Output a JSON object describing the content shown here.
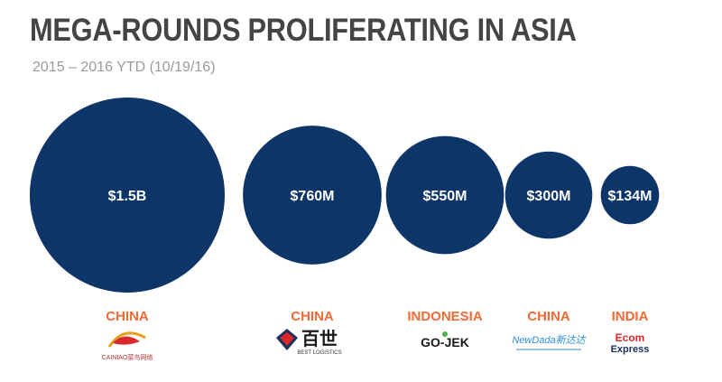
{
  "title": "MEGA-ROUNDS PROLIFERATING IN ASIA",
  "subtitle": "2015 – 2016 YTD (10/19/16)",
  "colors": {
    "bubble": "#0d3568",
    "country": "#f26a34",
    "title": "#444444",
    "subtitle": "#9a9a9a",
    "label_inside": "#ffffff"
  },
  "chart_data": {
    "type": "bubble",
    "title": "MEGA-ROUNDS PROLIFERATING IN ASIA",
    "subtitle": "2015 – 2016 YTD (10/19/16)",
    "values_musd": [
      1500,
      760,
      550,
      300,
      134
    ],
    "value_labels": [
      "$1.5B",
      "$760M",
      "$550M",
      "$300M",
      "$134M"
    ],
    "countries": [
      "CHINA",
      "CHINA",
      "INDONESIA",
      "CHINA",
      "INDIA"
    ],
    "logos": [
      {
        "text": "CAINIAO菜鸟网络",
        "icon": "cainiao-logo"
      },
      {
        "text": "百世",
        "subtext": "BEST LOGISTICS",
        "icon": "best-logistics-logo"
      },
      {
        "text": "GO-JEK",
        "icon": "gojek-logo"
      },
      {
        "text": "NewDada新达达",
        "icon": "newdada-logo"
      },
      {
        "text": "Ecom",
        "subtext": "Express",
        "icon": "ecom-express-logo"
      }
    ]
  }
}
